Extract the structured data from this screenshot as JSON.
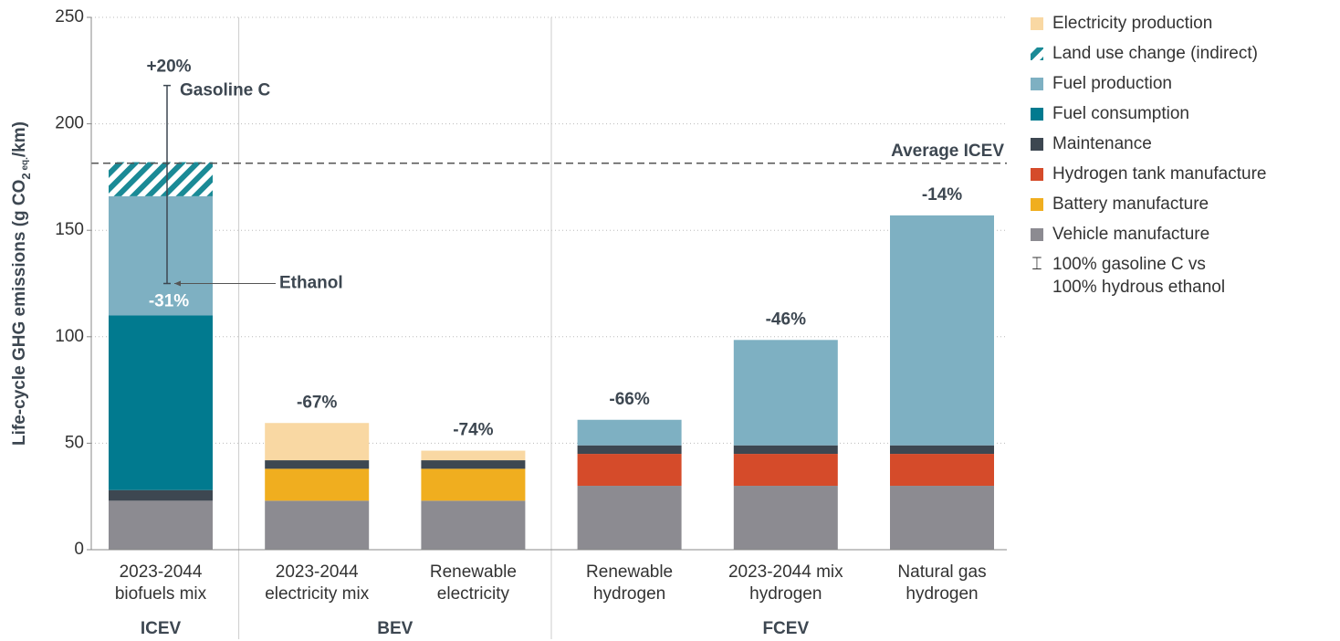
{
  "chart_data": {
    "type": "stacked_bar",
    "ylabel_parts": [
      "Life-cycle GHG emissions (g CO",
      "2",
      " eq.",
      "/km)"
    ],
    "categories": [
      [
        "2023-2044",
        "biofuels mix"
      ],
      [
        "2023-2044",
        "electricity mix"
      ],
      [
        "Renewable",
        "electricity"
      ],
      [
        "Renewable",
        "hydrogen"
      ],
      [
        "2023-2044 mix",
        "hydrogen"
      ],
      [
        "Natural gas",
        "hydrogen"
      ]
    ],
    "groups": [
      {
        "label": "ICEV",
        "members": [
          0
        ]
      },
      {
        "label": "BEV",
        "members": [
          1,
          2
        ]
      },
      {
        "label": "FCEV",
        "members": [
          3,
          4,
          5
        ]
      }
    ],
    "series": [
      {
        "name": "Electricity production",
        "color": "#f9d8a3",
        "values": [
          null,
          17.5,
          4.5,
          null,
          null,
          null
        ]
      },
      {
        "name": "Land use change (indirect)",
        "color": "#1a8a96",
        "hatch": true,
        "values": [
          16,
          null,
          null,
          null,
          null,
          null
        ]
      },
      {
        "name": "Fuel production",
        "color": "#7eb0c2",
        "values": [
          56,
          null,
          null,
          12,
          49.5,
          108
        ]
      },
      {
        "name": "Fuel consumption",
        "color": "#017a8f",
        "values": [
          82,
          null,
          null,
          null,
          null,
          null
        ]
      },
      {
        "name": "Maintenance",
        "color": "#3d4751",
        "values": [
          5,
          4,
          4,
          4,
          4,
          4
        ]
      },
      {
        "name": "Hydrogen tank manufacture",
        "color": "#d54b2a",
        "values": [
          null,
          null,
          null,
          15,
          15,
          15
        ]
      },
      {
        "name": "Battery manufacture",
        "color": "#f0ae1f",
        "values": [
          null,
          15,
          15,
          null,
          null,
          null
        ]
      },
      {
        "name": "Vehicle manufacture",
        "color": "#8c8b91",
        "values": [
          23,
          23,
          23,
          30,
          30,
          30
        ]
      }
    ],
    "bar_labels": [
      null,
      "-67%",
      "-74%",
      "-66%",
      "-46%",
      "-14%"
    ],
    "error_bar": {
      "high": 218,
      "low": 125,
      "high_label": "+20%",
      "low_label": "-31%",
      "high_name": "Gasoline C",
      "low_name": "Ethanol",
      "legend": [
        "100% gasoline C vs",
        "100% hydrous ethanol"
      ]
    },
    "reference_line": {
      "value": 181.5,
      "label": "Average ICEV"
    },
    "ylim": [
      0,
      250
    ],
    "yticks": [
      0,
      50,
      100,
      150,
      200,
      250
    ],
    "grid": true
  }
}
